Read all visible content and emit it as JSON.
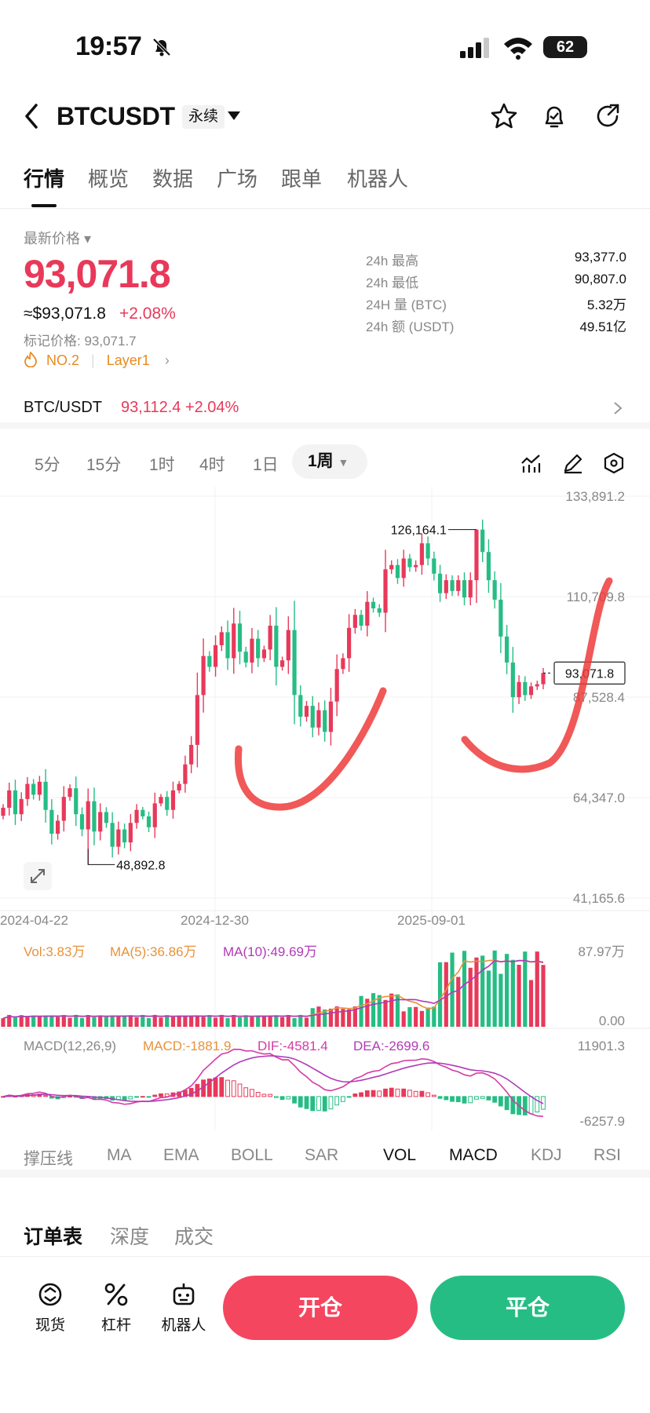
{
  "status": {
    "time": "19:57",
    "battery": "62"
  },
  "header": {
    "symbol": "BTCUSDT",
    "contract_badge": "永续"
  },
  "tabs": [
    "行情",
    "概览",
    "数据",
    "广场",
    "跟单",
    "机器人"
  ],
  "ticker": {
    "label": "最新价格",
    "last_price": "93,071.8",
    "usd_price": "≈$93,071.8",
    "change_pct": "+2.08%",
    "mark_price": "标记价格: 93,071.7",
    "rank": "NO.2",
    "sector": "Layer1"
  },
  "stats": [
    {
      "label": "24h  最高",
      "value": "93,377.0"
    },
    {
      "label": "24h  最低",
      "value": "90,807.0"
    },
    {
      "label": "24H  量 (BTC)",
      "value": "5.32万"
    },
    {
      "label": "24h  额 (USDT)",
      "value": "49.51亿"
    }
  ],
  "spot_pair": {
    "name": "BTC/USDT",
    "price": "93,112.4",
    "change": "+2.04%"
  },
  "intervals": [
    "5分",
    "15分",
    "1时",
    "4时",
    "1日"
  ],
  "active_interval": "1周",
  "colors": {
    "up": "#e8395a",
    "down": "#26bd84",
    "ma5": "#e8923a",
    "ma10": "#b03ab8",
    "annotation": "#ee3b3b"
  },
  "chart_data": {
    "type": "candlestick",
    "price_axis": [
      "133,891.2",
      "110,709.8",
      "87,528.4",
      "64,347.0",
      "41,165.6"
    ],
    "ylim": [
      41165.6,
      133891.2
    ],
    "date_ticks": [
      "2024-04-22",
      "2024-12-30",
      "2025-09-01"
    ],
    "high_label": "126,164.1",
    "low_label": "48,892.8",
    "current_label": "93,071.8",
    "closes": [
      62000,
      66000,
      60500,
      64000,
      67500,
      65000,
      68000,
      61500,
      56000,
      59000,
      64500,
      66500,
      60500,
      57000,
      63500,
      56500,
      61000,
      58500,
      53000,
      57000,
      54000,
      58500,
      61500,
      60000,
      57500,
      63000,
      64500,
      61500,
      66000,
      67500,
      72000,
      76500,
      88000,
      97000,
      94500,
      99500,
      102500,
      96500,
      104500,
      98000,
      95500,
      101000,
      96500,
      98500,
      104000,
      94500,
      96000,
      103000,
      88000,
      83000,
      85500,
      80500,
      84500,
      79500,
      86500,
      94000,
      96500,
      103500,
      106500,
      104000,
      109500,
      108000,
      107000,
      117000,
      118000,
      115000,
      119500,
      117500,
      118000,
      123000,
      119500,
      116000,
      111500,
      114500,
      112000,
      114500,
      110500,
      114500,
      126164,
      121000,
      114500,
      110000,
      101500,
      95500,
      87500,
      91000,
      88000,
      90000,
      90500,
      93071
    ],
    "volume": {
      "vol": "Vol:3.83万",
      "ma5": "MA(5):36.86万",
      "ma10": "MA(10):49.69万",
      "max": "87.97万",
      "min": "0.00"
    },
    "macd": {
      "title": "MACD(12,26,9)",
      "macd": "MACD:-1881.9",
      "dif": "DIF:-4581.4",
      "dea": "DEA:-2699.6",
      "max": "11901.3",
      "min": "-6257.9"
    }
  },
  "indicators": [
    "撑压线",
    "MA",
    "EMA",
    "BOLL",
    "SAR",
    "VOL",
    "MACD",
    "KDJ",
    "RSI"
  ],
  "book_tabs": [
    "订单表",
    "深度",
    "成交"
  ],
  "bottom_nav": [
    "现货",
    "杠杆",
    "机器人"
  ],
  "actions": {
    "open": "开仓",
    "close": "平仓"
  }
}
